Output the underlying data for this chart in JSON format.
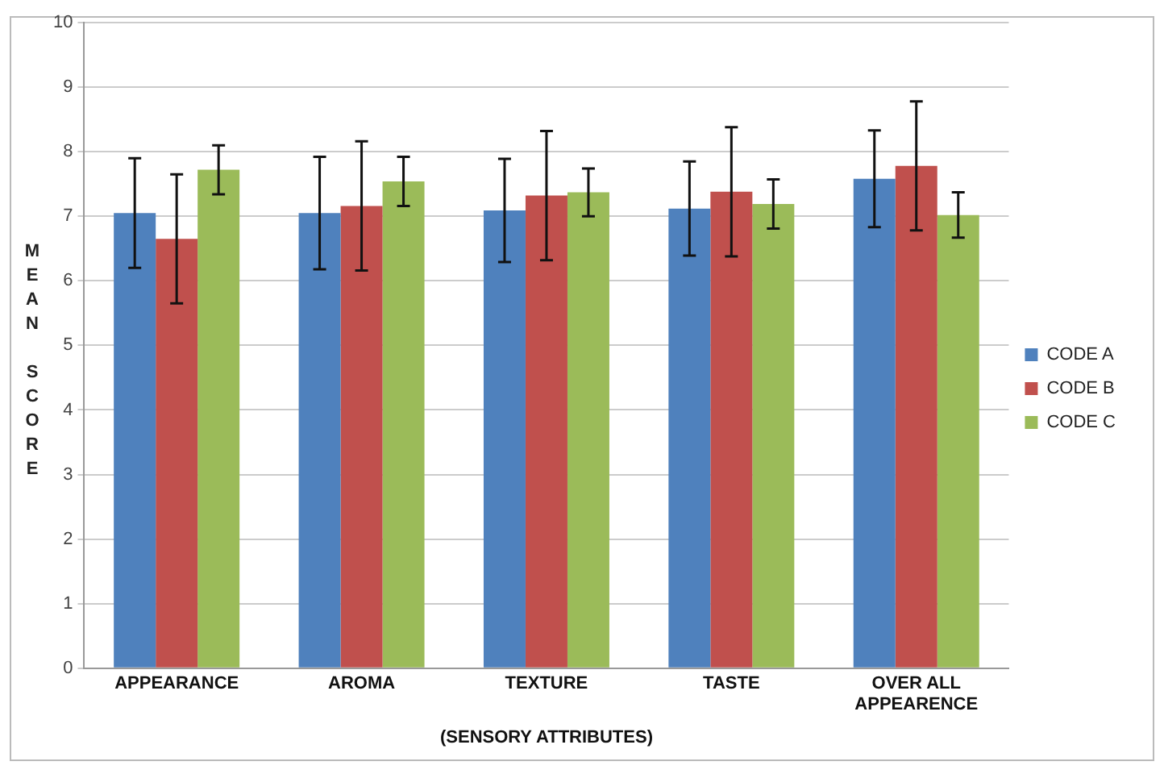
{
  "chart_data": {
    "type": "bar",
    "xlabel": "(SENSORY ATTRIBUTES)",
    "ylabel": "MEAN SCORE",
    "categories": [
      "APPEARANCE",
      "AROMA",
      "TEXTURE",
      "TASTE",
      "OVER ALL APPEARENCE"
    ],
    "series": [
      {
        "name": "CODE A",
        "color": "#4f81bd",
        "values": [
          7.05,
          7.05,
          7.09,
          7.12,
          7.58
        ],
        "errors": [
          0.85,
          0.87,
          0.8,
          0.73,
          0.75
        ]
      },
      {
        "name": "CODE B",
        "color": "#c0504d",
        "values": [
          6.65,
          7.16,
          7.32,
          7.38,
          7.78
        ],
        "errors": [
          1.0,
          1.0,
          1.0,
          1.0,
          1.0
        ]
      },
      {
        "name": "CODE C",
        "color": "#9bbb59",
        "values": [
          7.72,
          7.54,
          7.37,
          7.19,
          7.02
        ],
        "errors": [
          0.38,
          0.38,
          0.37,
          0.38,
          0.35
        ]
      }
    ],
    "ylim": [
      0,
      10
    ],
    "yticks": [
      0,
      1,
      2,
      3,
      4,
      5,
      6,
      7,
      8,
      9,
      10
    ],
    "grid": "y",
    "legend": "right"
  }
}
